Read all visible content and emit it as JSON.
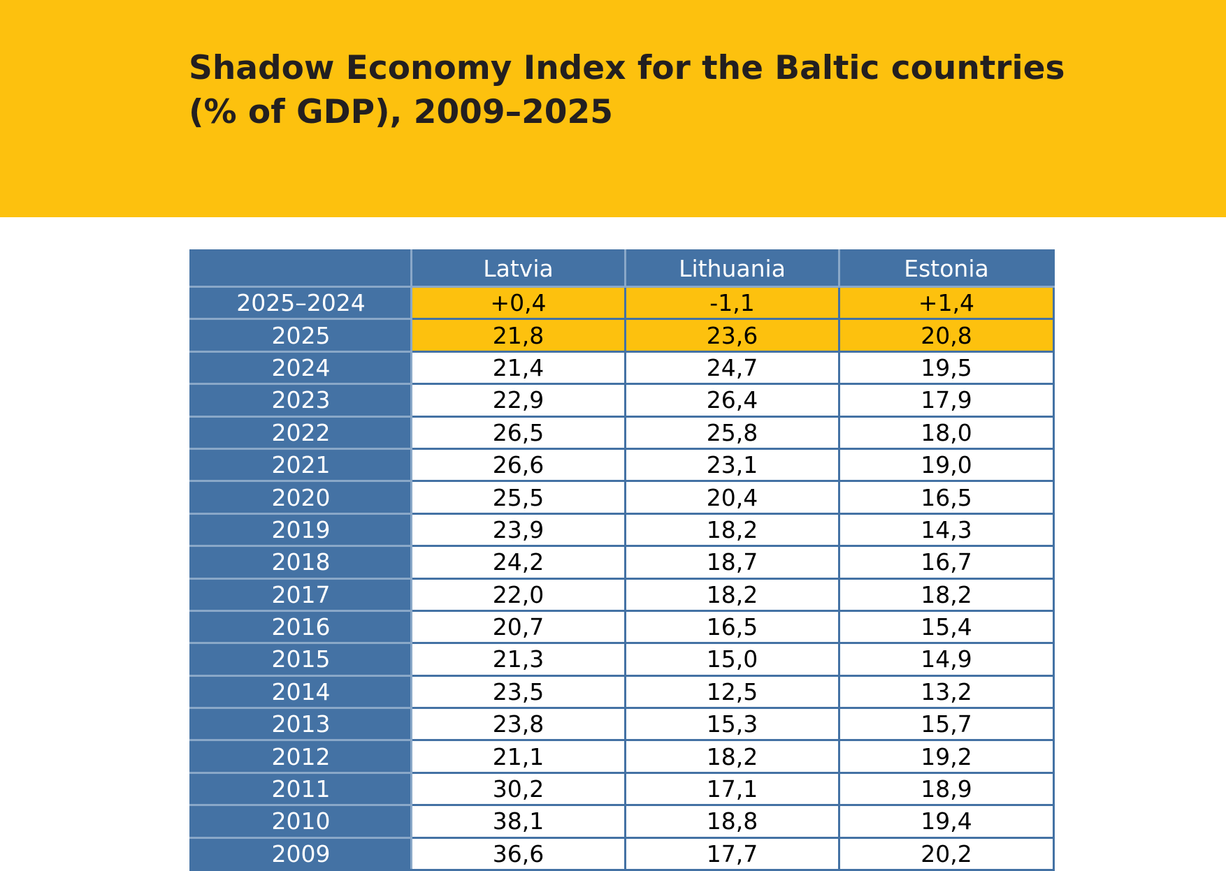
{
  "title": {
    "line1": "Shadow Economy Index for the Baltic countries",
    "line2": "(% of GDP), 2009–2025"
  },
  "colors": {
    "banner": "#fdc10e",
    "header_blue": "#4472a4",
    "highlight": "#fdc10e"
  },
  "table": {
    "columns": [
      "",
      "Latvia",
      "Lithuania",
      "Estonia"
    ],
    "rows": [
      {
        "label": "2025–2024",
        "values": [
          "+0,4",
          "-1,1",
          "+1,4"
        ],
        "highlight": true
      },
      {
        "label": "2025",
        "values": [
          "21,8",
          "23,6",
          "20,8"
        ],
        "highlight": true
      },
      {
        "label": "2024",
        "values": [
          "21,4",
          "24,7",
          "19,5"
        ]
      },
      {
        "label": "2023",
        "values": [
          "22,9",
          "26,4",
          "17,9"
        ]
      },
      {
        "label": "2022",
        "values": [
          "26,5",
          "25,8",
          "18,0"
        ]
      },
      {
        "label": "2021",
        "values": [
          "26,6",
          "23,1",
          "19,0"
        ]
      },
      {
        "label": "2020",
        "values": [
          "25,5",
          "20,4",
          "16,5"
        ]
      },
      {
        "label": "2019",
        "values": [
          "23,9",
          "18,2",
          "14,3"
        ]
      },
      {
        "label": "2018",
        "values": [
          "24,2",
          "18,7",
          "16,7"
        ]
      },
      {
        "label": "2017",
        "values": [
          "22,0",
          "18,2",
          "18,2"
        ]
      },
      {
        "label": "2016",
        "values": [
          "20,7",
          "16,5",
          "15,4"
        ]
      },
      {
        "label": "2015",
        "values": [
          "21,3",
          "15,0",
          "14,9"
        ]
      },
      {
        "label": "2014",
        "values": [
          "23,5",
          "12,5",
          "13,2"
        ]
      },
      {
        "label": "2013",
        "values": [
          "23,8",
          "15,3",
          "15,7"
        ]
      },
      {
        "label": "2012",
        "values": [
          "21,1",
          "18,2",
          "19,2"
        ]
      },
      {
        "label": "2011",
        "values": [
          "30,2",
          "17,1",
          "18,9"
        ]
      },
      {
        "label": "2010",
        "values": [
          "38,1",
          "18,8",
          "19,4"
        ]
      },
      {
        "label": "2009",
        "values": [
          "36,6",
          "17,7",
          "20,2"
        ]
      }
    ]
  }
}
